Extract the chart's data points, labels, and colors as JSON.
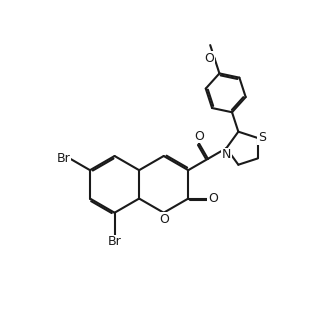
{
  "bg": "#ffffff",
  "lc": "#1a1a1a",
  "lw": 1.5,
  "doff": 0.06,
  "fs": 9.0,
  "figsize": [
    3.35,
    3.12
  ],
  "dpi": 100,
  "xlim": [
    -0.5,
    10.5
  ],
  "ylim": [
    -1.5,
    9.5
  ]
}
